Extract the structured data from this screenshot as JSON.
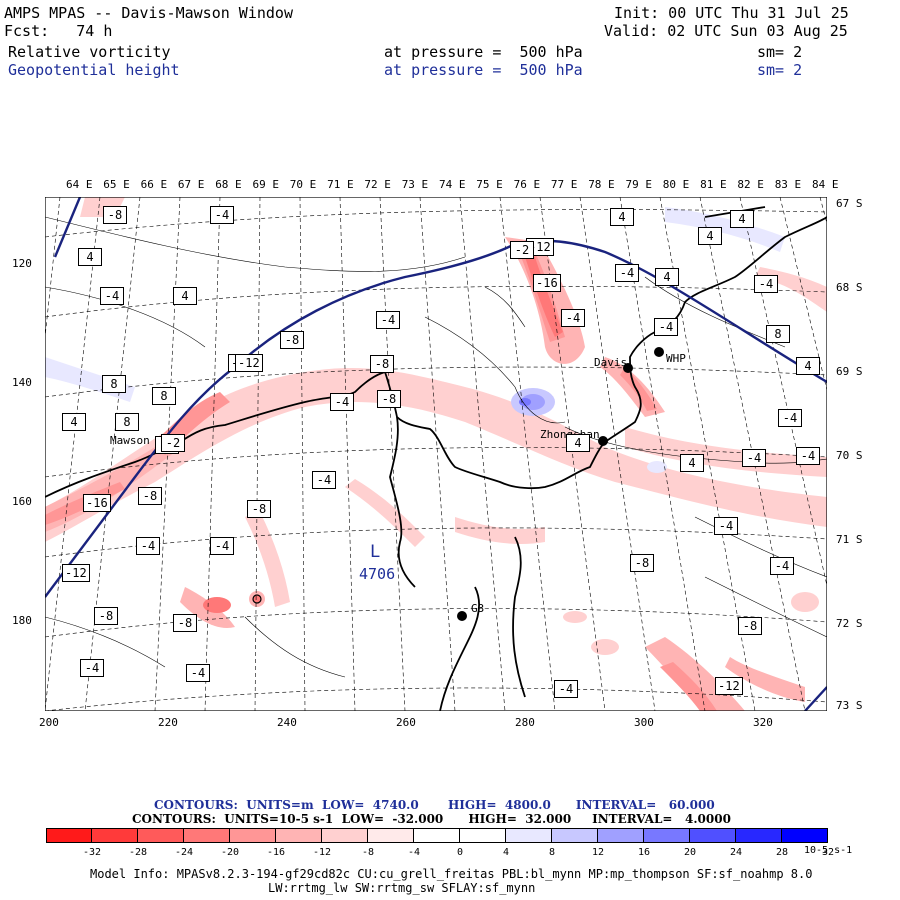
{
  "header": {
    "title": "AMPS MPAS -- Davis-Mawson Window",
    "init": "Init: 00 UTC Thu 31 Jul 25",
    "fcst": "Fcst:   74 h",
    "valid": "Valid: 02 UTC Sun 03 Aug 25",
    "field1_name": "Relative vorticity",
    "field1_level": "at pressure =  500 hPa",
    "field1_sm": "sm= 2",
    "field2_name": "Geopotential height",
    "field2_level": "at pressure =  500 hPa",
    "field2_sm": "sm= 2"
  },
  "axes": {
    "top_lon": [
      "64 E",
      "65 E",
      "66 E",
      "67 E",
      "68 E",
      "69 E",
      "70 E",
      "71 E",
      "72 E",
      "73 E",
      "74 E",
      "75 E",
      "76 E",
      "77 E",
      "78 E",
      "79 E",
      "80 E",
      "81 E",
      "82 E",
      "83 E",
      "84 E"
    ],
    "right_lat": [
      "67 S",
      "68 S",
      "69 S",
      "70 S",
      "71 S",
      "72 S",
      "73 S"
    ],
    "left_y": [
      "120",
      "140",
      "160",
      "180"
    ],
    "bottom_x": [
      "200",
      "220",
      "240",
      "260",
      "280",
      "300",
      "320"
    ]
  },
  "stations": [
    "Mawson",
    "Davis",
    "WHP",
    "Zhongshan",
    "G3"
  ],
  "low_label": {
    "letter": "L",
    "value": "4706"
  },
  "contour_labels": [
    "-8",
    "-4",
    "4",
    "-4",
    "4",
    "8",
    "-12",
    "-8",
    "8",
    "4",
    "8",
    "8",
    "-8",
    "-4",
    "-12",
    "-2",
    "-16",
    "-4",
    "-8",
    "-4",
    "-4",
    "-8",
    "-12",
    "-8",
    "-8",
    "-4",
    "-4",
    "-8",
    "-4",
    "-12",
    "-2",
    "-16",
    "-4",
    "-4",
    "4",
    "4",
    "4",
    "-4",
    "8",
    "4",
    "4",
    "4",
    "-4",
    "4",
    "-4",
    "-4",
    "-4",
    "-8",
    "-4",
    "-8",
    "-4",
    "-4",
    "-12"
  ],
  "footer": {
    "contours1": "CONTOURS:  UNITS=m  LOW=  4740.0       HIGH=  4800.0      INTERVAL=   60.000",
    "contours2": "CONTOURS:  UNITS=10-5 s-1  LOW=  -32.000      HIGH=  32.000     INTERVAL=   4.0000",
    "model_info1": "Model Info: MPASv8.2.3-194-gf29cd82c CU:cu_grell_freitas PBL:bl_mynn MP:mp_thompson SF:sf_noahmp 8.0",
    "model_info2": "LW:rrtmg_lw SW:rrtmg_sw SFLAY:sf_mynn",
    "colorbar_units": "10-5 s-1"
  },
  "colorbar": {
    "labels": [
      "-32",
      "-28",
      "-24",
      "-20",
      "-16",
      "-12",
      "-8",
      "-4",
      "0",
      "4",
      "8",
      "12",
      "16",
      "20",
      "24",
      "28",
      "32"
    ],
    "colors": [
      "#ff1a1a",
      "#ff3a3a",
      "#ff5a5a",
      "#ff7878",
      "#ff9696",
      "#ffb4b4",
      "#ffd0d0",
      "#ffeaea",
      "#ffffff",
      "#ffffff",
      "#e8e8ff",
      "#c8c8ff",
      "#a0a0ff",
      "#7878ff",
      "#5050ff",
      "#2828ff",
      "#0000ff"
    ]
  }
}
